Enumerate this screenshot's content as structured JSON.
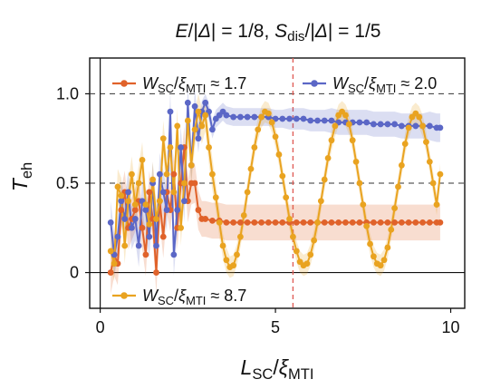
{
  "chart_data": {
    "type": "line",
    "title": "E/|Δ| = 1/8, S_dis/|Δ| = 1/5",
    "xlabel": "L_SC/ξ_MTI",
    "ylabel": "T_eh",
    "xlim": [
      -0.3,
      10.4
    ],
    "ylim": [
      -0.2,
      1.2
    ],
    "xticks": [
      0,
      5,
      10
    ],
    "yticks": [
      0,
      0.5,
      1.0
    ],
    "ytick_labels": [
      "0",
      "0.5",
      "1.0"
    ],
    "dashed_hlines": [
      0.5,
      1.0
    ],
    "vline_x": 5.5,
    "legend_placement": "inside-top-left, inside-top-right, inside-bottom-left",
    "series": [
      {
        "name": "W_SC/ξ_MTI ≈ 1.7",
        "color": "#e0622a",
        "x": [
          0.3,
          0.4,
          0.5,
          0.6,
          0.7,
          0.8,
          0.9,
          1.0,
          1.1,
          1.2,
          1.3,
          1.4,
          1.5,
          1.6,
          1.7,
          1.8,
          1.9,
          2.0,
          2.1,
          2.2,
          2.3,
          2.4,
          2.5,
          2.6,
          2.7,
          2.8,
          2.9,
          3.0,
          3.2,
          3.4,
          3.6,
          3.8,
          4.0,
          4.2,
          4.4,
          4.6,
          4.8,
          5.0,
          5.2,
          5.4,
          5.6,
          5.8,
          6.0,
          6.2,
          6.4,
          6.6,
          6.8,
          7.0,
          7.2,
          7.4,
          7.6,
          7.8,
          8.0,
          8.2,
          8.4,
          8.6,
          8.8,
          9.0,
          9.2,
          9.4,
          9.6,
          9.7
        ],
        "values": [
          0.0,
          0.1,
          0.05,
          0.35,
          0.45,
          0.25,
          0.3,
          0.35,
          0.4,
          0.25,
          0.1,
          0.45,
          0.3,
          0.0,
          0.4,
          0.2,
          0.45,
          0.35,
          0.55,
          0.25,
          0.5,
          0.7,
          0.4,
          0.5,
          0.5,
          0.35,
          0.3,
          0.3,
          0.29,
          0.29,
          0.28,
          0.28,
          0.28,
          0.28,
          0.28,
          0.28,
          0.28,
          0.28,
          0.28,
          0.28,
          0.28,
          0.28,
          0.28,
          0.28,
          0.28,
          0.28,
          0.28,
          0.28,
          0.28,
          0.28,
          0.28,
          0.28,
          0.28,
          0.28,
          0.28,
          0.28,
          0.28,
          0.28,
          0.28,
          0.28,
          0.28,
          0.28
        ],
        "band": [
          0.12,
          0.12,
          0.12,
          0.12,
          0.12,
          0.12,
          0.12,
          0.12,
          0.12,
          0.12,
          0.12,
          0.12,
          0.12,
          0.12,
          0.12,
          0.12,
          0.12,
          0.12,
          0.12,
          0.12,
          0.12,
          0.12,
          0.12,
          0.12,
          0.11,
          0.11,
          0.1,
          0.1,
          0.1,
          0.1,
          0.1,
          0.1,
          0.1,
          0.1,
          0.1,
          0.1,
          0.1,
          0.1,
          0.1,
          0.1,
          0.1,
          0.1,
          0.1,
          0.1,
          0.1,
          0.1,
          0.1,
          0.1,
          0.1,
          0.1,
          0.1,
          0.1,
          0.1,
          0.1,
          0.1,
          0.1,
          0.1,
          0.1,
          0.1,
          0.1,
          0.1,
          0.1
        ]
      },
      {
        "name": "W_SC/ξ_MTI ≈ 2.0",
        "color": "#5b67c6",
        "x": [
          0.3,
          0.4,
          0.5,
          0.6,
          0.7,
          0.8,
          0.9,
          1.0,
          1.1,
          1.2,
          1.3,
          1.4,
          1.5,
          1.6,
          1.7,
          1.8,
          1.9,
          2.0,
          2.1,
          2.2,
          2.3,
          2.4,
          2.5,
          2.6,
          2.7,
          2.8,
          2.9,
          3.0,
          3.1,
          3.2,
          3.3,
          3.4,
          3.5,
          3.6,
          3.8,
          4.0,
          4.2,
          4.4,
          4.6,
          4.8,
          5.0,
          5.2,
          5.4,
          5.6,
          5.8,
          6.0,
          6.2,
          6.4,
          6.6,
          6.8,
          7.0,
          7.2,
          7.4,
          7.6,
          7.8,
          8.0,
          8.2,
          8.4,
          8.6,
          8.8,
          9.0,
          9.2,
          9.4,
          9.6,
          9.7
        ],
        "values": [
          0.28,
          0.1,
          0.2,
          0.4,
          0.3,
          0.45,
          0.25,
          0.3,
          0.15,
          0.4,
          0.35,
          0.2,
          0.5,
          0.15,
          0.55,
          0.45,
          0.35,
          0.9,
          0.1,
          0.35,
          0.7,
          0.4,
          0.95,
          0.6,
          0.93,
          0.75,
          0.9,
          0.95,
          0.9,
          0.8,
          0.86,
          0.88,
          0.9,
          0.88,
          0.87,
          0.87,
          0.87,
          0.87,
          0.87,
          0.87,
          0.86,
          0.86,
          0.86,
          0.86,
          0.86,
          0.85,
          0.85,
          0.85,
          0.85,
          0.84,
          0.84,
          0.84,
          0.84,
          0.84,
          0.83,
          0.83,
          0.83,
          0.83,
          0.82,
          0.82,
          0.82,
          0.82,
          0.82,
          0.81,
          0.81
        ],
        "band": [
          0.12,
          0.12,
          0.12,
          0.12,
          0.12,
          0.12,
          0.12,
          0.12,
          0.12,
          0.12,
          0.12,
          0.12,
          0.12,
          0.12,
          0.12,
          0.12,
          0.12,
          0.12,
          0.12,
          0.12,
          0.12,
          0.12,
          0.1,
          0.1,
          0.1,
          0.08,
          0.06,
          0.05,
          0.05,
          0.05,
          0.05,
          0.05,
          0.05,
          0.05,
          0.05,
          0.05,
          0.05,
          0.05,
          0.05,
          0.05,
          0.05,
          0.05,
          0.06,
          0.06,
          0.06,
          0.06,
          0.06,
          0.06,
          0.07,
          0.07,
          0.07,
          0.07,
          0.07,
          0.07,
          0.07,
          0.07,
          0.07,
          0.07,
          0.07,
          0.07,
          0.07,
          0.07,
          0.08,
          0.08,
          0.08
        ]
      },
      {
        "name": "W_SC/ξ_MTI ≈ 8.7",
        "color": "#e9a320",
        "x": [
          0.3,
          0.4,
          0.5,
          0.6,
          0.7,
          0.8,
          0.9,
          1.0,
          1.1,
          1.2,
          1.3,
          1.4,
          1.5,
          1.6,
          1.7,
          1.8,
          1.9,
          2.0,
          2.1,
          2.2,
          2.3,
          2.4,
          2.5,
          2.6,
          2.7,
          2.8,
          2.9,
          3.0,
          3.1,
          3.2,
          3.3,
          3.4,
          3.5,
          3.6,
          3.7,
          3.8,
          3.9,
          4.0,
          4.1,
          4.2,
          4.3,
          4.4,
          4.5,
          4.6,
          4.7,
          4.8,
          4.9,
          5.0,
          5.1,
          5.2,
          5.3,
          5.4,
          5.5,
          5.6,
          5.7,
          5.8,
          5.9,
          6.0,
          6.1,
          6.2,
          6.3,
          6.4,
          6.5,
          6.6,
          6.7,
          6.8,
          6.9,
          7.0,
          7.1,
          7.2,
          7.3,
          7.4,
          7.5,
          7.6,
          7.7,
          7.8,
          7.9,
          8.0,
          8.1,
          8.2,
          8.3,
          8.4,
          8.5,
          8.6,
          8.7,
          8.8,
          8.9,
          9.0,
          9.1,
          9.2,
          9.3,
          9.4,
          9.5,
          9.6,
          9.7
        ],
        "values": [
          0.12,
          0.05,
          0.48,
          0.43,
          0.15,
          0.4,
          0.55,
          0.38,
          0.5,
          0.63,
          0.38,
          0.27,
          0.52,
          0.3,
          0.4,
          0.75,
          0.55,
          0.7,
          0.45,
          0.82,
          0.25,
          0.5,
          0.85,
          0.6,
          0.8,
          0.9,
          0.82,
          0.88,
          0.7,
          0.55,
          0.42,
          0.28,
          0.15,
          0.07,
          0.03,
          0.04,
          0.1,
          0.2,
          0.32,
          0.45,
          0.58,
          0.7,
          0.8,
          0.87,
          0.9,
          0.89,
          0.84,
          0.76,
          0.66,
          0.54,
          0.42,
          0.3,
          0.2,
          0.12,
          0.06,
          0.04,
          0.05,
          0.1,
          0.18,
          0.28,
          0.4,
          0.52,
          0.64,
          0.74,
          0.82,
          0.88,
          0.9,
          0.88,
          0.83,
          0.74,
          0.62,
          0.5,
          0.38,
          0.26,
          0.16,
          0.09,
          0.05,
          0.04,
          0.07,
          0.14,
          0.24,
          0.36,
          0.48,
          0.6,
          0.72,
          0.81,
          0.87,
          0.89,
          0.87,
          0.82,
          0.73,
          0.62,
          0.5,
          0.38,
          0.55
        ],
        "band": [
          0.1,
          0.1,
          0.1,
          0.1,
          0.1,
          0.1,
          0.1,
          0.1,
          0.1,
          0.1,
          0.1,
          0.1,
          0.1,
          0.1,
          0.1,
          0.1,
          0.1,
          0.1,
          0.1,
          0.1,
          0.1,
          0.1,
          0.1,
          0.1,
          0.1,
          0.1,
          0.1,
          0.09,
          0.09,
          0.09,
          0.08,
          0.08,
          0.07,
          0.07,
          0.06,
          0.06,
          0.06,
          0.06,
          0.06,
          0.06,
          0.06,
          0.06,
          0.06,
          0.06,
          0.06,
          0.06,
          0.06,
          0.06,
          0.06,
          0.06,
          0.06,
          0.06,
          0.06,
          0.06,
          0.06,
          0.06,
          0.06,
          0.06,
          0.06,
          0.06,
          0.06,
          0.06,
          0.06,
          0.06,
          0.06,
          0.06,
          0.06,
          0.06,
          0.06,
          0.06,
          0.06,
          0.06,
          0.06,
          0.06,
          0.06,
          0.06,
          0.06,
          0.06,
          0.06,
          0.06,
          0.06,
          0.06,
          0.06,
          0.06,
          0.06,
          0.06,
          0.06,
          0.06,
          0.06,
          0.06,
          0.06,
          0.06,
          0.06,
          0.06,
          0.06
        ]
      }
    ]
  }
}
